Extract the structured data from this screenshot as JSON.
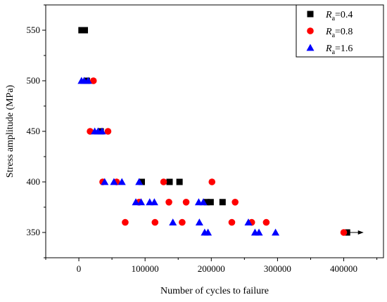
{
  "chart_data": {
    "type": "scatter",
    "title": "",
    "xlabel": "Number of cycles to failure",
    "ylabel": "Stress amplitude (MPa)",
    "xlim": [
      -50000,
      460000
    ],
    "ylim": [
      325,
      575
    ],
    "xticks": [
      0,
      100000,
      200000,
      300000,
      400000
    ],
    "xtick_labels": [
      "0",
      "100000",
      "200000",
      "300000",
      "400000"
    ],
    "yticks": [
      350,
      400,
      450,
      500,
      550
    ],
    "ytick_labels": [
      "350",
      "400",
      "450",
      "500",
      "550"
    ],
    "grid": false,
    "legend_position": "top-right",
    "series": [
      {
        "name": "Ra=0.4",
        "legend_main": "R",
        "legend_sub": "a",
        "legend_value": "=0.4",
        "marker": "square",
        "color": "#000000",
        "points": [
          {
            "x": 4000,
            "y": 550
          },
          {
            "x": 9000,
            "y": 550
          },
          {
            "x": 12000,
            "y": 500
          },
          {
            "x": 33000,
            "y": 450
          },
          {
            "x": 95000,
            "y": 400
          },
          {
            "x": 137000,
            "y": 400
          },
          {
            "x": 152000,
            "y": 400
          },
          {
            "x": 193000,
            "y": 380
          },
          {
            "x": 199000,
            "y": 380
          },
          {
            "x": 217000,
            "y": 380
          },
          {
            "x": 405000,
            "y": 350
          }
        ]
      },
      {
        "name": "Ra=0.8",
        "legend_main": "R",
        "legend_sub": "a",
        "legend_value": "=0.8",
        "marker": "circle",
        "color": "#ff0000",
        "points": [
          {
            "x": 22000,
            "y": 500
          },
          {
            "x": 17000,
            "y": 450
          },
          {
            "x": 44000,
            "y": 450
          },
          {
            "x": 36000,
            "y": 400
          },
          {
            "x": 57000,
            "y": 400
          },
          {
            "x": 128000,
            "y": 400
          },
          {
            "x": 201000,
            "y": 400
          },
          {
            "x": 91000,
            "y": 380
          },
          {
            "x": 136000,
            "y": 380
          },
          {
            "x": 162000,
            "y": 380
          },
          {
            "x": 236000,
            "y": 380
          },
          {
            "x": 70000,
            "y": 360
          },
          {
            "x": 115000,
            "y": 360
          },
          {
            "x": 156000,
            "y": 360
          },
          {
            "x": 231000,
            "y": 360
          },
          {
            "x": 261000,
            "y": 360
          },
          {
            "x": 283000,
            "y": 360
          },
          {
            "x": 400000,
            "y": 350
          }
        ]
      },
      {
        "name": "Ra=1.6",
        "legend_main": "R",
        "legend_sub": "a",
        "legend_value": "=1.6",
        "marker": "triangle",
        "color": "#0000ff",
        "points": [
          {
            "x": 4000,
            "y": 500
          },
          {
            "x": 8000,
            "y": 500
          },
          {
            "x": 14000,
            "y": 500
          },
          {
            "x": 24000,
            "y": 450
          },
          {
            "x": 29000,
            "y": 450
          },
          {
            "x": 35000,
            "y": 450
          },
          {
            "x": 39000,
            "y": 400
          },
          {
            "x": 53000,
            "y": 400
          },
          {
            "x": 65000,
            "y": 400
          },
          {
            "x": 91000,
            "y": 400
          },
          {
            "x": 86000,
            "y": 380
          },
          {
            "x": 94000,
            "y": 380
          },
          {
            "x": 107000,
            "y": 380
          },
          {
            "x": 114000,
            "y": 380
          },
          {
            "x": 181000,
            "y": 380
          },
          {
            "x": 188000,
            "y": 380
          },
          {
            "x": 142000,
            "y": 360
          },
          {
            "x": 182000,
            "y": 360
          },
          {
            "x": 256000,
            "y": 360
          },
          {
            "x": 190000,
            "y": 350
          },
          {
            "x": 195000,
            "y": 350
          },
          {
            "x": 266000,
            "y": 350
          },
          {
            "x": 272000,
            "y": 350
          },
          {
            "x": 297000,
            "y": 350
          }
        ]
      }
    ],
    "annotations": [
      {
        "type": "runout-arrow",
        "from": {
          "x": 408000,
          "y": 350
        },
        "to": {
          "x": 430000,
          "y": 350
        }
      }
    ]
  }
}
